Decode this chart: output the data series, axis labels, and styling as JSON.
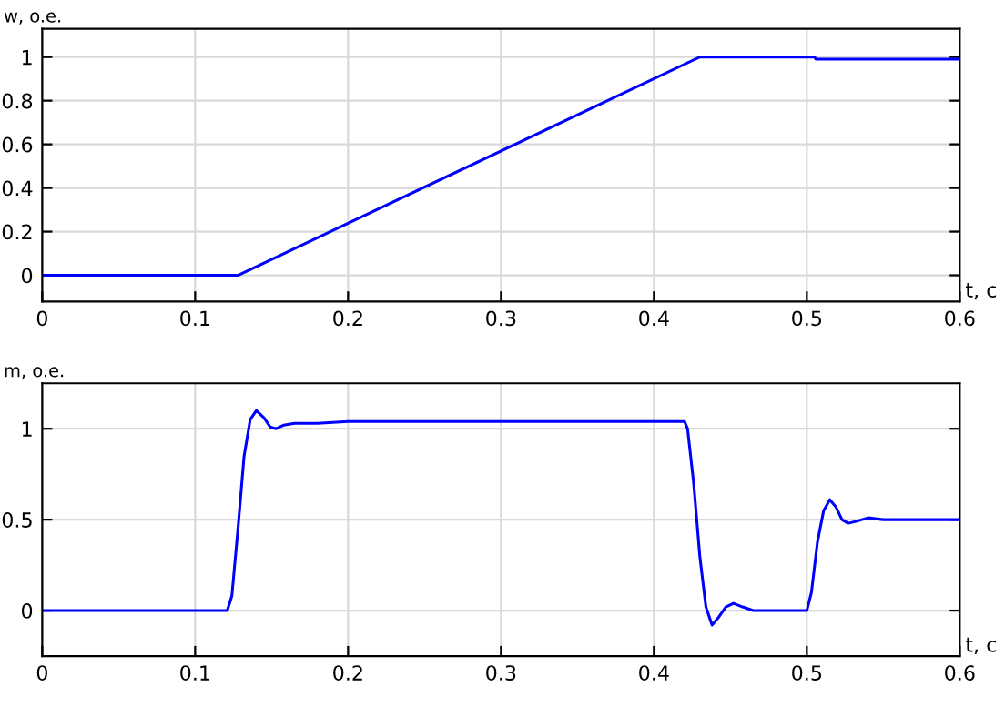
{
  "chart_data": [
    {
      "type": "line",
      "xlabel": "t, c",
      "ylabel": "w, o.e.",
      "xlim": [
        0,
        0.6
      ],
      "ylim": [
        -0.12,
        1.13
      ],
      "xticks": [
        0,
        0.1,
        0.2,
        0.3,
        0.4,
        0.5,
        0.6
      ],
      "yticks": [
        0,
        0.2,
        0.4,
        0.6,
        0.8,
        1
      ],
      "grid": true,
      "marker": "none",
      "line_style": "solid",
      "series": [
        {
          "color": "#0000ff",
          "x": [
            0,
            0.128,
            0.43,
            0.505,
            0.506,
            0.6
          ],
          "values": [
            0,
            0,
            1,
            1,
            0.99,
            0.99
          ]
        }
      ]
    },
    {
      "type": "line",
      "xlabel": "t, c",
      "ylabel": "m, o.e.",
      "xlim": [
        0,
        0.6
      ],
      "ylim": [
        -0.25,
        1.25
      ],
      "xticks": [
        0,
        0.1,
        0.2,
        0.3,
        0.4,
        0.5,
        0.6
      ],
      "yticks": [
        0,
        0.5,
        1
      ],
      "grid": true,
      "marker": "none",
      "line_style": "solid",
      "series": [
        {
          "color": "#0000ff",
          "x": [
            0,
            0.121,
            0.124,
            0.128,
            0.132,
            0.136,
            0.14,
            0.145,
            0.149,
            0.153,
            0.158,
            0.165,
            0.18,
            0.2,
            0.3,
            0.42,
            0.422,
            0.426,
            0.43,
            0.434,
            0.438,
            0.442,
            0.447,
            0.452,
            0.458,
            0.465,
            0.48,
            0.5,
            0.503,
            0.507,
            0.511,
            0.515,
            0.519,
            0.523,
            0.527,
            0.532,
            0.54,
            0.55,
            0.6
          ],
          "values": [
            0,
            0,
            0.08,
            0.45,
            0.85,
            1.05,
            1.1,
            1.06,
            1.01,
            1.0,
            1.02,
            1.03,
            1.03,
            1.04,
            1.04,
            1.04,
            1.0,
            0.7,
            0.3,
            0.02,
            -0.08,
            -0.04,
            0.02,
            0.04,
            0.02,
            0.0,
            0.0,
            0.0,
            0.1,
            0.38,
            0.55,
            0.61,
            0.57,
            0.5,
            0.48,
            0.49,
            0.51,
            0.5,
            0.5
          ]
        }
      ]
    }
  ]
}
